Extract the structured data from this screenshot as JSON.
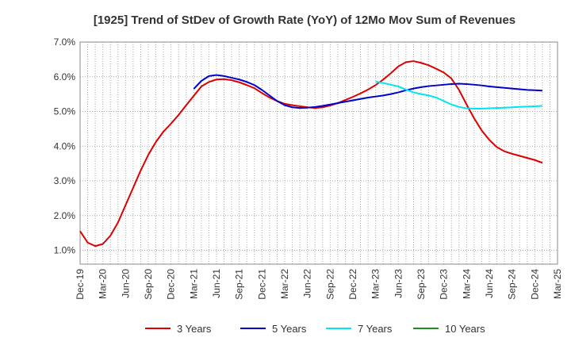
{
  "chart_data": {
    "type": "line",
    "title": "[1925]  Trend of StDev of Growth Rate (YoY) of 12Mo Mov Sum of Revenues",
    "xlabel": "",
    "ylabel": "",
    "x_tick_labels": [
      "Dec-19",
      "Mar-20",
      "Jun-20",
      "Sep-20",
      "Dec-20",
      "Mar-21",
      "Jun-21",
      "Sep-21",
      "Dec-21",
      "Mar-22",
      "Jun-22",
      "Sep-22",
      "Dec-22",
      "Mar-23",
      "Jun-23",
      "Sep-23",
      "Dec-23",
      "Mar-24",
      "Jun-24",
      "Sep-24",
      "Dec-24",
      "Mar-25"
    ],
    "y_tick_labels": [
      "1.0%",
      "2.0%",
      "3.0%",
      "4.0%",
      "5.0%",
      "6.0%",
      "7.0%"
    ],
    "ylim": [
      0.6,
      7.0
    ],
    "x_range_months": [
      0,
      63
    ],
    "grid": true,
    "legend_position": "bottom",
    "series": [
      {
        "name": "3 Years",
        "color": "#dd0000",
        "start_month": 0,
        "values": [
          1.55,
          1.22,
          1.12,
          1.18,
          1.42,
          1.8,
          2.3,
          2.8,
          3.3,
          3.75,
          4.12,
          4.42,
          4.65,
          4.9,
          5.18,
          5.45,
          5.72,
          5.85,
          5.92,
          5.93,
          5.9,
          5.84,
          5.76,
          5.67,
          5.53,
          5.4,
          5.3,
          5.22,
          5.18,
          5.15,
          5.12,
          5.1,
          5.12,
          5.17,
          5.24,
          5.33,
          5.42,
          5.52,
          5.63,
          5.76,
          5.92,
          6.1,
          6.3,
          6.42,
          6.45,
          6.4,
          6.33,
          6.23,
          6.12,
          5.95,
          5.62,
          5.2,
          4.8,
          4.45,
          4.18,
          3.97,
          3.85,
          3.78,
          3.72,
          3.66,
          3.6,
          3.52
        ]
      },
      {
        "name": "5 Years",
        "color": "#0000cc",
        "start_month": 15,
        "values": [
          5.65,
          5.88,
          6.02,
          6.05,
          6.02,
          5.97,
          5.92,
          5.85,
          5.76,
          5.62,
          5.46,
          5.3,
          5.18,
          5.12,
          5.1,
          5.11,
          5.13,
          5.16,
          5.2,
          5.24,
          5.28,
          5.32,
          5.36,
          5.4,
          5.43,
          5.46,
          5.5,
          5.55,
          5.61,
          5.66,
          5.7,
          5.73,
          5.75,
          5.77,
          5.79,
          5.8,
          5.79,
          5.77,
          5.75,
          5.72,
          5.7,
          5.68,
          5.66,
          5.64,
          5.62,
          5.61,
          5.6
        ]
      },
      {
        "name": "7 Years",
        "color": "#00e5ee",
        "start_month": 39,
        "values": [
          5.86,
          5.82,
          5.77,
          5.72,
          5.63,
          5.55,
          5.5,
          5.46,
          5.4,
          5.3,
          5.2,
          5.13,
          5.09,
          5.08,
          5.08,
          5.09,
          5.1,
          5.11,
          5.12,
          5.13,
          5.14,
          5.15,
          5.16
        ]
      },
      {
        "name": "10 Years",
        "color": "#228b22",
        "start_month": 0,
        "values": []
      }
    ]
  }
}
